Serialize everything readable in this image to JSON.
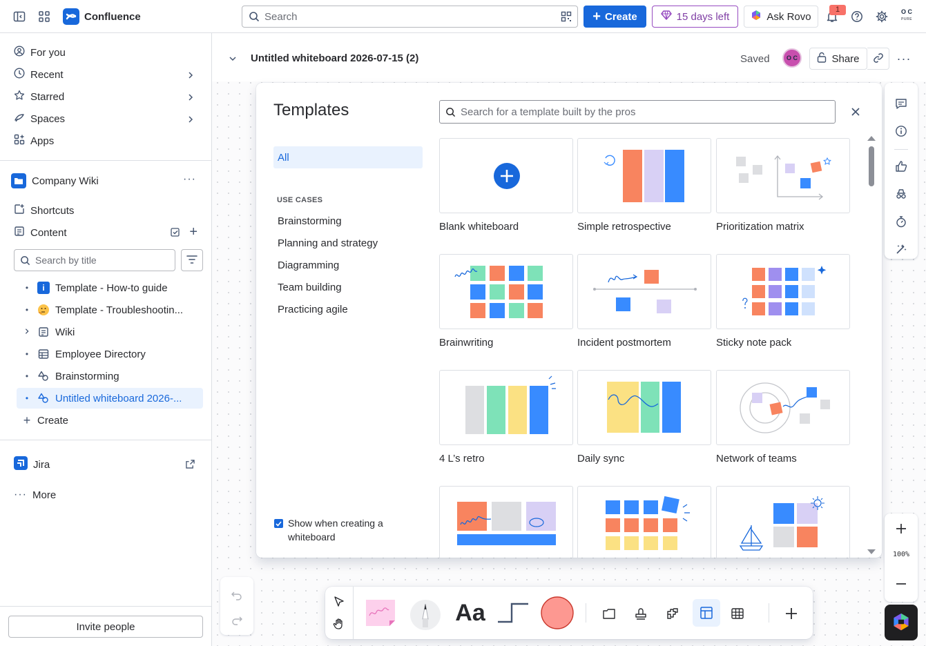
{
  "topbar": {
    "app_name": "Confluence",
    "search_placeholder": "Search",
    "create_label": "Create",
    "trial_label": "15 days left",
    "rovo_label": "Ask Rovo",
    "notification_count": "1",
    "avatar_initials": "O C",
    "avatar_sub": "PURE"
  },
  "sidebar": {
    "nav": [
      {
        "label": "For you"
      },
      {
        "label": "Recent"
      },
      {
        "label": "Starred"
      },
      {
        "label": "Spaces"
      },
      {
        "label": "Apps"
      }
    ],
    "space_name": "Company Wiki",
    "shortcuts_label": "Shortcuts",
    "content_label": "Content",
    "search_placeholder": "Search by title",
    "tree": [
      {
        "label": "Template - How-to guide"
      },
      {
        "label": "Template - Troubleshootin..."
      },
      {
        "label": "Wiki"
      },
      {
        "label": "Employee Directory"
      },
      {
        "label": "Brainstorming"
      },
      {
        "label": "Untitled whiteboard 2026-..."
      }
    ],
    "create_label": "Create",
    "jira_label": "Jira",
    "more_label": "More",
    "invite_label": "Invite people"
  },
  "whiteboard": {
    "title": "Untitled whiteboard 2026-07-15 (2)",
    "saved_label": "Saved",
    "avatar_initials": "O C",
    "share_label": "Share",
    "zoom_level": "100%"
  },
  "templates": {
    "title": "Templates",
    "search_placeholder": "Search for a template built by the pros",
    "category_all": "All",
    "use_cases_heading": "USE CASES",
    "categories": [
      {
        "label": "Brainstorming"
      },
      {
        "label": "Planning and strategy"
      },
      {
        "label": "Diagramming"
      },
      {
        "label": "Team building"
      },
      {
        "label": "Practicing agile"
      }
    ],
    "show_when_creating": "Show when creating a whiteboard",
    "cards": [
      {
        "label": "Blank whiteboard"
      },
      {
        "label": "Simple retrospective"
      },
      {
        "label": "Prioritization matrix"
      },
      {
        "label": "Brainwriting"
      },
      {
        "label": "Incident postmortem"
      },
      {
        "label": "Sticky note pack"
      },
      {
        "label": "4 L’s retro"
      },
      {
        "label": "Daily sync"
      },
      {
        "label": "Network of teams"
      }
    ]
  },
  "toolbar": {
    "text_tool_glyph": "Aa"
  },
  "colors": {
    "brand_blue": "#1868db",
    "coral": "#fd9891",
    "green": "#7ee2b8",
    "blue": "#388bff",
    "lavender": "#d8d0f5",
    "yellow": "#fbe183",
    "grey": "#dddee1",
    "salmon": "#f8845f"
  }
}
